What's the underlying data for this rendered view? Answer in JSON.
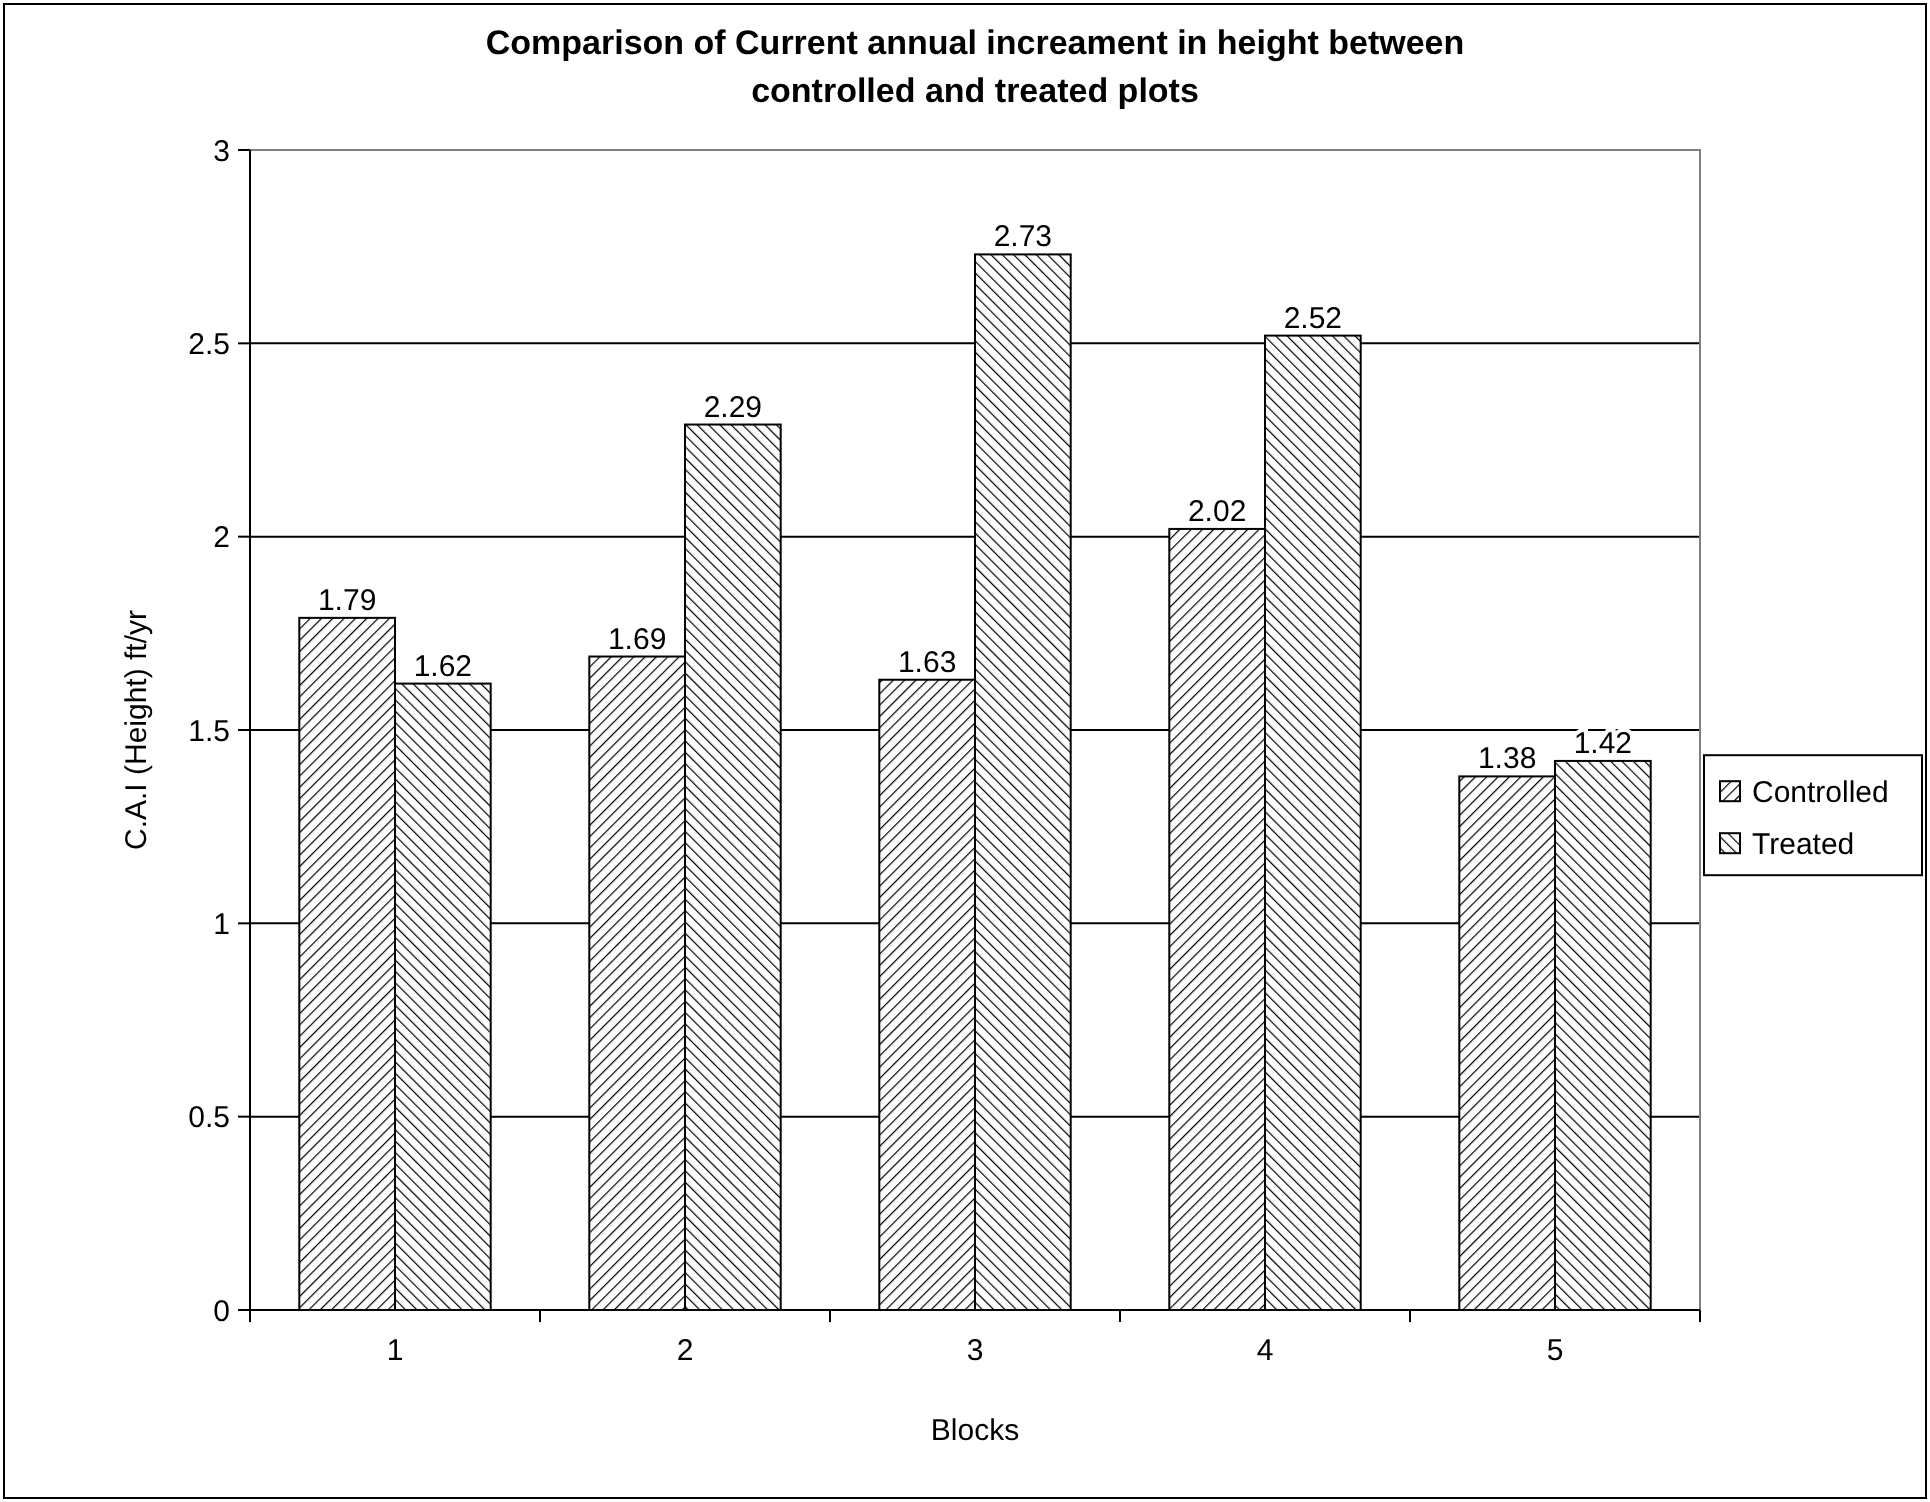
{
  "chart_data": {
    "type": "bar",
    "title": "Comparison of Current annual increament in height between controlled and treated plots",
    "xlabel": "Blocks",
    "ylabel": "C.A.I (Height) ft/yr",
    "categories": [
      "1",
      "2",
      "3",
      "4",
      "5"
    ],
    "series": [
      {
        "name": "Controlled",
        "color": "#000000",
        "values": [
          1.79,
          1.69,
          1.63,
          2.02,
          1.38
        ]
      },
      {
        "name": "Treated",
        "color": "#000000",
        "values": [
          1.62,
          2.29,
          2.73,
          2.52,
          1.42
        ]
      }
    ],
    "ylim": [
      0,
      3
    ],
    "yticks": [
      0,
      0.5,
      1,
      1.5,
      2,
      2.5,
      3
    ],
    "grid": "y",
    "legend": "right",
    "data_labels": true
  }
}
